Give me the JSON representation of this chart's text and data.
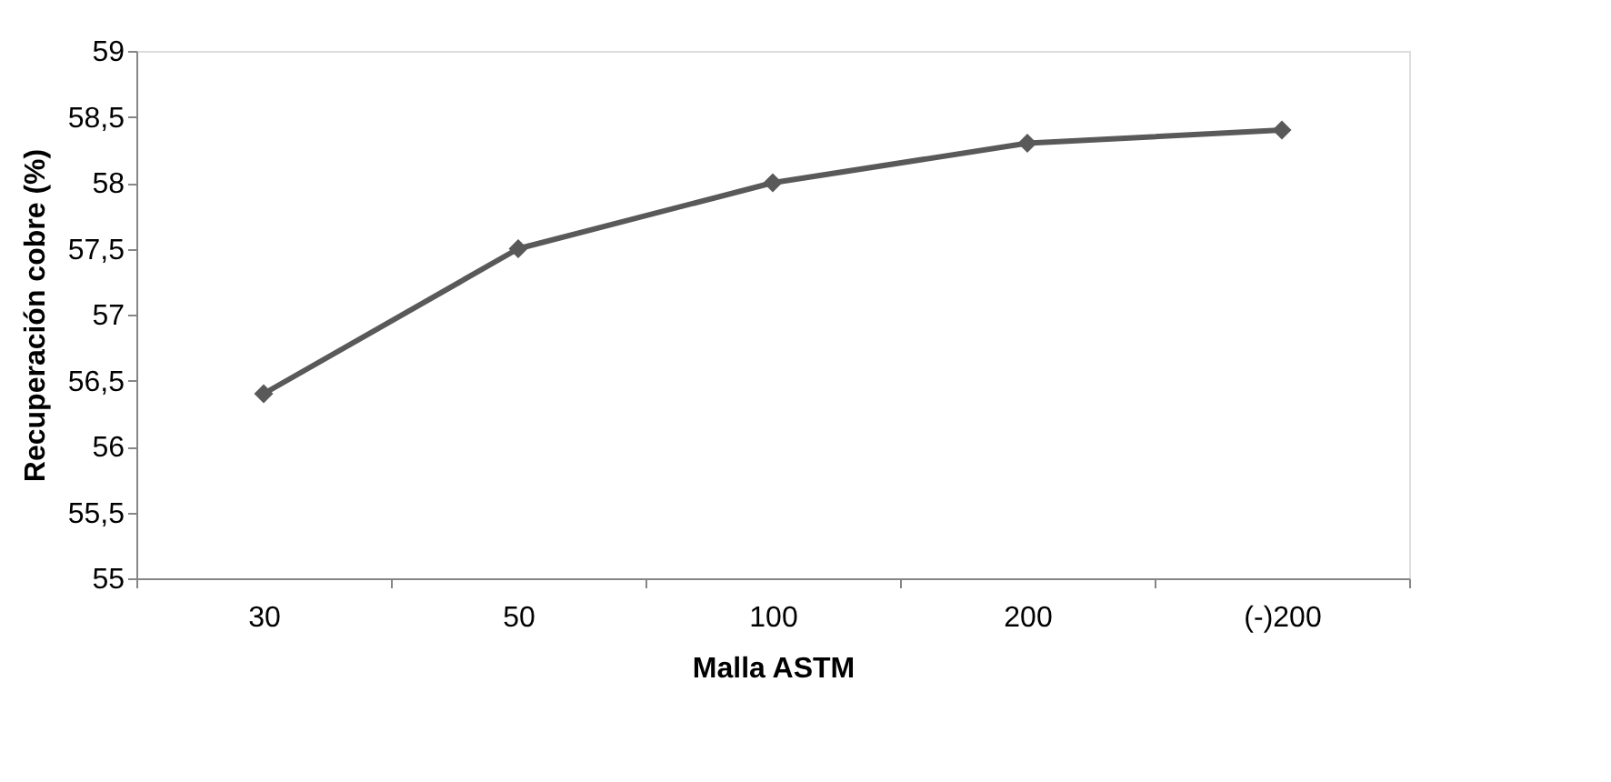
{
  "chart_data": {
    "type": "line",
    "xlabel": "Malla ASTM",
    "ylabel": "Recuperación  cobre (%)",
    "categories": [
      "30",
      "50",
      "100",
      "200",
      "(-)200"
    ],
    "series": [
      {
        "color": "#595959",
        "values": [
          56.4,
          57.5,
          58.0,
          58.3,
          58.4
        ]
      }
    ],
    "ylim": [
      55,
      59
    ],
    "yticks": [
      55,
      {
        "value": 55.5,
        "label": "55,5"
      },
      56,
      {
        "value": 56.5,
        "label": "56,5"
      },
      57,
      {
        "value": 57.5,
        "label": "57,5"
      },
      58,
      {
        "value": 58.5,
        "label": "58,5"
      },
      59
    ],
    "grid": false,
    "marker": "diamond",
    "line_style": "solid"
  }
}
